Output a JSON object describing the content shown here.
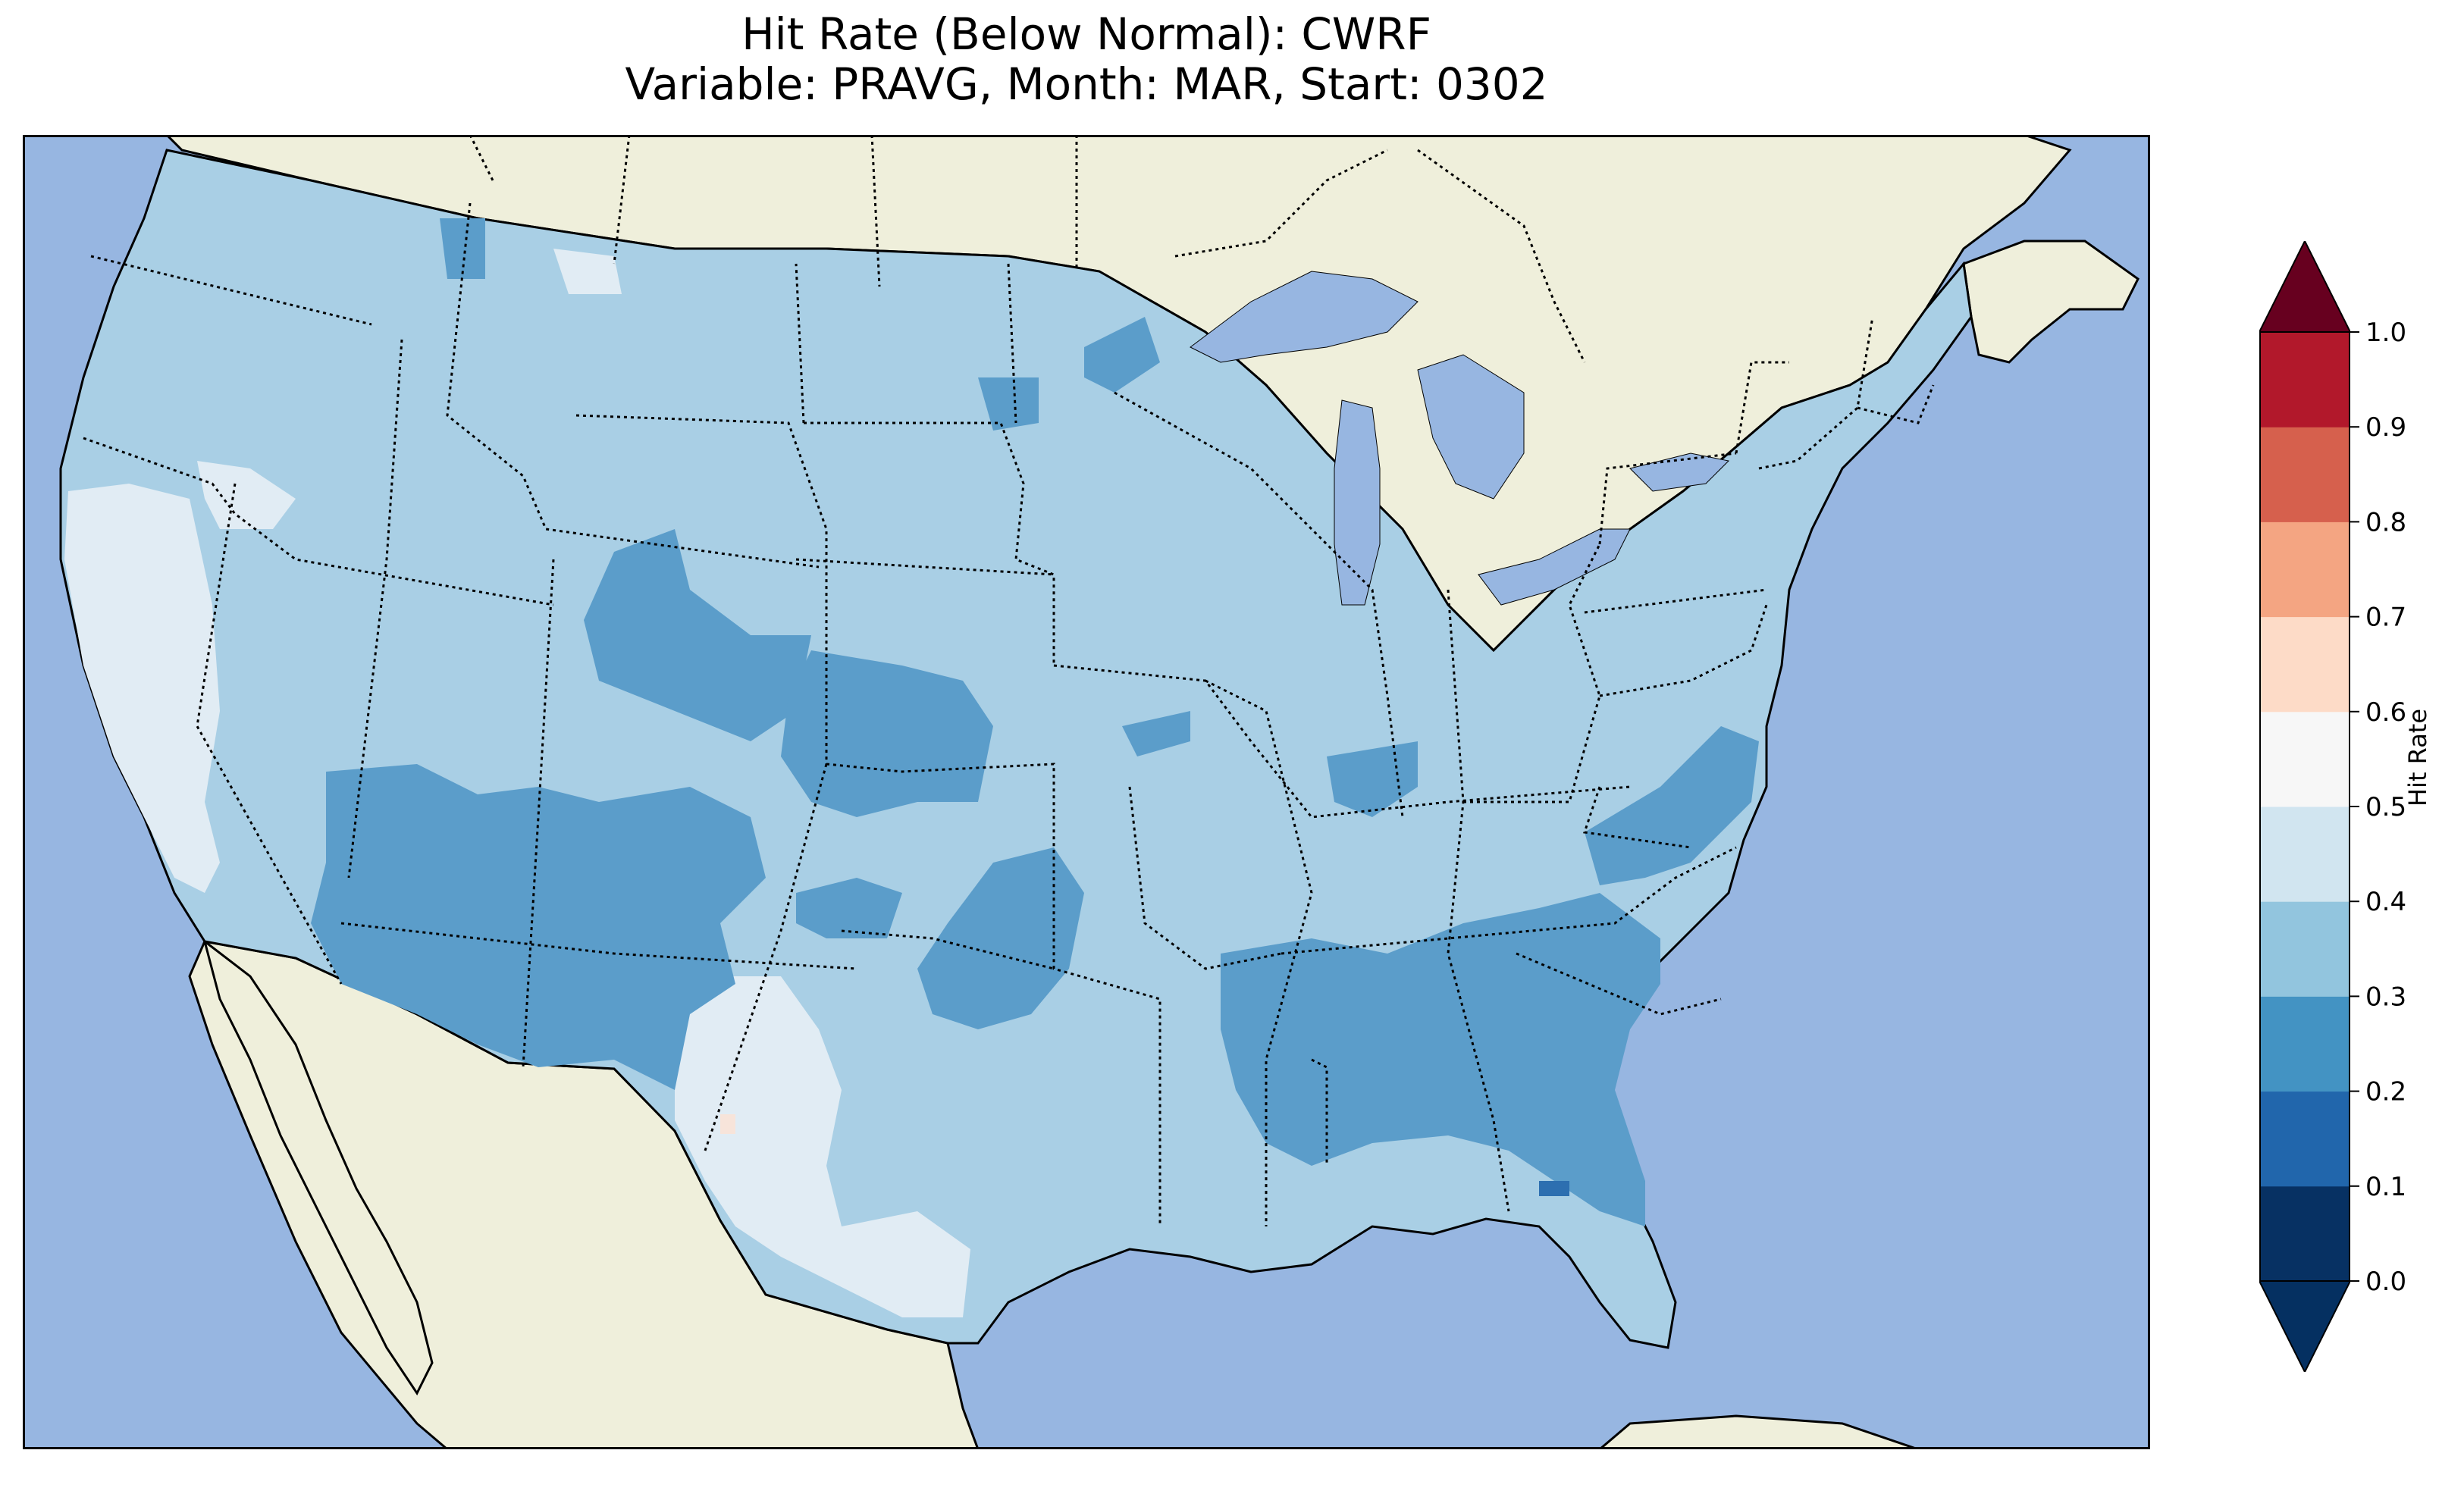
{
  "title": {
    "line1": "Hit Rate (Below Normal): CWRF",
    "line2": "Variable: PRAVG, Month: MAR, Start: 0302"
  },
  "colors": {
    "ocean": "#97b6e1",
    "land": "#efefdb",
    "lakes": "#97b6e1"
  },
  "colorbar": {
    "label": "Hit Rate",
    "ticks": [
      "0.0",
      "0.1",
      "0.2",
      "0.3",
      "0.4",
      "0.5",
      "0.6",
      "0.7",
      "0.8",
      "0.9",
      "1.0"
    ],
    "colors": [
      "#073163",
      "#2166ac",
      "#4393c3",
      "#92c5de",
      "#d1e5f0",
      "#f7f7f7",
      "#fddbc7",
      "#f4a582",
      "#d6604d",
      "#b2182b"
    ],
    "under_color": "#053061",
    "over_color": "#67001f",
    "extend": "both"
  },
  "map_fields": {
    "field_colors": [
      "#a9cfe5",
      "#5b9dca",
      "#e1ecf4",
      "#2d6fb0",
      "#f7e4da"
    ]
  }
}
